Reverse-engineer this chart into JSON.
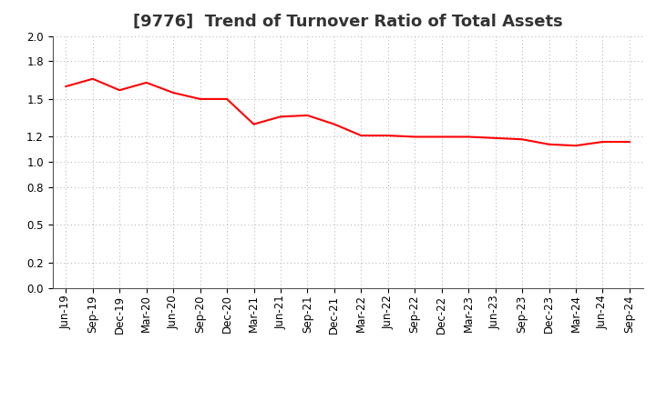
{
  "title": "[9776]  Trend of Turnover Ratio of Total Assets",
  "x_labels": [
    "Jun-19",
    "Sep-19",
    "Dec-19",
    "Mar-20",
    "Jun-20",
    "Sep-20",
    "Dec-20",
    "Mar-21",
    "Jun-21",
    "Sep-21",
    "Dec-21",
    "Mar-22",
    "Jun-22",
    "Sep-22",
    "Dec-22",
    "Mar-23",
    "Jun-23",
    "Sep-23",
    "Dec-23",
    "Mar-24",
    "Jun-24",
    "Sep-24"
  ],
  "values": [
    1.6,
    1.66,
    1.57,
    1.63,
    1.55,
    1.5,
    1.5,
    1.3,
    1.36,
    1.37,
    1.3,
    1.21,
    1.21,
    1.2,
    1.2,
    1.2,
    1.19,
    1.18,
    1.14,
    1.13,
    1.16,
    1.16
  ],
  "line_color": "#FF0000",
  "line_width": 1.5,
  "ylim": [
    0.0,
    2.0
  ],
  "yticks": [
    0.0,
    0.2,
    0.5,
    0.8,
    1.0,
    1.2,
    1.5,
    1.8,
    2.0
  ],
  "grid_color": "#aaaaaa",
  "background_color": "#ffffff",
  "title_fontsize": 13,
  "tick_fontsize": 8.5
}
